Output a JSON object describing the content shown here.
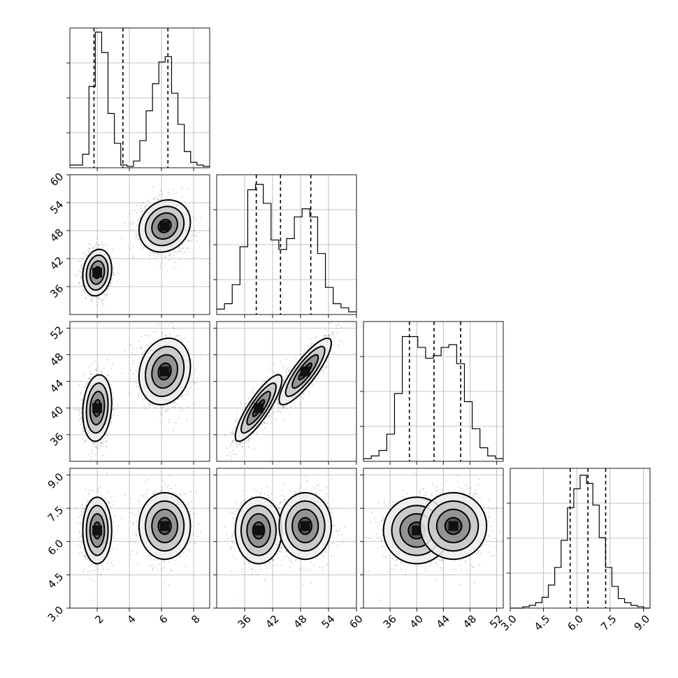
{
  "chart_data": {
    "type": "corner",
    "variables": [
      {
        "range": [
          0.3,
          9.0
        ],
        "ticks": [
          2,
          4,
          6,
          8
        ],
        "tick_labels": [
          "2",
          "4",
          "6",
          "8"
        ],
        "quantiles": [
          1.8,
          3.6,
          6.4
        ],
        "hist": [
          0.02,
          0.02,
          0.1,
          0.6,
          1.0,
          0.85,
          0.4,
          0.18,
          0.02,
          0.01,
          0.05,
          0.2,
          0.42,
          0.62,
          0.78,
          0.82,
          0.55,
          0.32,
          0.12,
          0.04,
          0.02,
          0.01
        ],
        "label": ""
      },
      {
        "range": [
          30,
          60
        ],
        "ticks": [
          36,
          42,
          48,
          54,
          60
        ],
        "tick_labels": [
          "36",
          "42",
          "48",
          "54",
          "60"
        ],
        "quantiles": [
          38.5,
          43.7,
          50.2
        ],
        "hist": [
          0.04,
          0.08,
          0.22,
          0.5,
          0.92,
          0.96,
          0.82,
          0.55,
          0.48,
          0.56,
          0.72,
          0.78,
          0.72,
          0.45,
          0.2,
          0.08,
          0.05,
          0.02
        ],
        "label": ""
      },
      {
        "range": [
          32,
          53
        ],
        "ticks": [
          36,
          40,
          44,
          48,
          52
        ],
        "tick_labels": [
          "36",
          "40",
          "44",
          "48",
          "52"
        ],
        "quantiles": [
          38.9,
          42.6,
          46.6
        ],
        "hist": [
          0.02,
          0.04,
          0.08,
          0.2,
          0.5,
          0.92,
          0.92,
          0.84,
          0.76,
          0.78,
          0.84,
          0.86,
          0.72,
          0.44,
          0.24,
          0.1,
          0.04,
          0.02
        ],
        "label": ""
      },
      {
        "range": [
          3.0,
          9.3
        ],
        "ticks": [
          3.0,
          4.5,
          6.0,
          7.5,
          9.0
        ],
        "tick_labels": [
          "3.0",
          "4.5",
          "6.0",
          "7.5",
          "9.0"
        ],
        "quantiles": [
          5.7,
          6.5,
          7.3
        ],
        "hist": [
          0.0,
          0.0,
          0.01,
          0.02,
          0.04,
          0.08,
          0.17,
          0.3,
          0.5,
          0.74,
          0.88,
          0.98,
          0.92,
          0.76,
          0.52,
          0.3,
          0.16,
          0.07,
          0.04,
          0.02,
          0.01,
          0.0
        ],
        "label": ""
      }
    ],
    "modes": [
      {
        "means": [
          2.0,
          39.0,
          40.0,
          6.5
        ],
        "sds": [
          0.45,
          2.5,
          2.5,
          0.75
        ]
      },
      {
        "means": [
          6.2,
          49.0,
          45.5,
          6.7
        ],
        "sds": [
          0.8,
          2.8,
          2.5,
          0.75
        ]
      }
    ],
    "correlation_23": 0.85,
    "samples_per_mode": 900,
    "contour_levels_sigma": [
      0.5,
      1.0,
      1.5,
      2.0
    ],
    "grid": true
  }
}
